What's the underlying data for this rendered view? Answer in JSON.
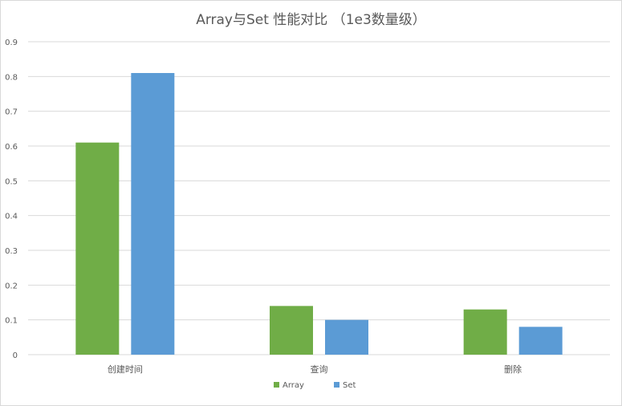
{
  "chart_data": {
    "type": "bar",
    "title": "Array与Set 性能对比 （1e3数量级）",
    "categories": [
      "创建时间",
      "查询",
      "删除"
    ],
    "series": [
      {
        "name": "Array",
        "values": [
          0.61,
          0.14,
          0.13
        ],
        "color": "#70ad47"
      },
      {
        "name": "Set",
        "values": [
          0.81,
          0.1,
          0.08
        ],
        "color": "#5b9bd5"
      }
    ],
    "ylim": [
      0,
      0.9
    ],
    "yticks": [
      "0",
      "0.1",
      "0.2",
      "0.3",
      "0.4",
      "0.5",
      "0.6",
      "0.7",
      "0.8",
      "0.9"
    ],
    "grid": true,
    "legend": "bottom"
  }
}
